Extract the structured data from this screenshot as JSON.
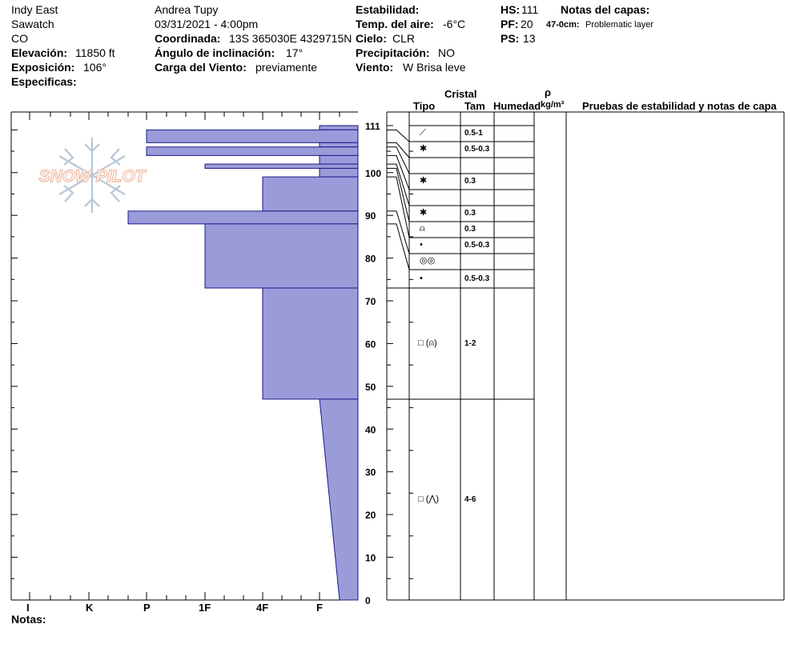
{
  "header": {
    "location": "Indy East",
    "range": "Sawatch",
    "state": "CO",
    "elevation_label": "Elevación:",
    "elevation_value": "11850 ft",
    "aspect_label": "Exposición:",
    "aspect_value": "106°",
    "specifics_label": "Especificas:",
    "observer": "Andrea Tupy",
    "datetime": "03/31/2021 - 4:00pm",
    "coord_label": "Coordinada:",
    "coord_value": "13S 365030E 4329715N",
    "slope_label": "Ángulo de inclinación:",
    "slope_value": "17°",
    "wind_load_label": "Carga del Viento:",
    "wind_load_value": "previamente",
    "stability_label": "Estabilidad:",
    "air_temp_label": "Temp. del aire:",
    "air_temp_value": "-6°C",
    "sky_label": "Cielo:",
    "sky_value": "CLR",
    "precip_label": "Precipitación:",
    "precip_value": "NO",
    "wind_label": "Viento:",
    "wind_value": "W Brisa leve",
    "hs_label": "HS:",
    "hs_value": "111",
    "pf_label": "PF:",
    "pf_value": "20",
    "ps_label": "PS:",
    "ps_value": "13",
    "layer_notes_label": "Notas del capas:",
    "layer_note_range": "47-0cm:",
    "layer_note_text": "Problematic layer"
  },
  "logo_text": "SNOW PILOT",
  "columns": {
    "crystal": "Cristal",
    "type": "Tipo",
    "size": "Tam",
    "moisture": "Humedad",
    "rho": "ρ",
    "density_unit": "kg/m³",
    "tests": "Pruebas de estabilidad y notas de capa"
  },
  "notes_label": "Notas:",
  "colors": {
    "fill": "#9b9bd9",
    "stroke": "#1a1a8c"
  },
  "chart_data": {
    "type": "snow_profile",
    "y_axis": {
      "range": [
        0,
        111
      ],
      "ticks": [
        0,
        10,
        20,
        30,
        40,
        50,
        60,
        70,
        80,
        90,
        100,
        111
      ]
    },
    "hardness_scale": [
      "I",
      "K",
      "P",
      "1F",
      "4F",
      "F"
    ],
    "hardness_profile": [
      {
        "top": 111,
        "bottom": 110,
        "hardness": "F"
      },
      {
        "top": 110,
        "bottom": 107,
        "hardness": "P"
      },
      {
        "top": 107,
        "bottom": 106,
        "hardness": "F"
      },
      {
        "top": 106,
        "bottom": 104,
        "hardness": "P"
      },
      {
        "top": 104,
        "bottom": 102,
        "hardness": "F"
      },
      {
        "top": 102,
        "bottom": 101,
        "hardness": "1F"
      },
      {
        "top": 101,
        "bottom": 99,
        "hardness": "F"
      },
      {
        "top": 99,
        "bottom": 91,
        "hardness": "4F"
      },
      {
        "top": 91,
        "bottom": 88,
        "hardness": "P-"
      },
      {
        "top": 88,
        "bottom": 73,
        "hardness": "1F"
      },
      {
        "top": 73,
        "bottom": 47,
        "hardness": "4F"
      },
      {
        "top": 47,
        "bottom": 0,
        "hardness": "F-",
        "taper": true
      }
    ],
    "layers": [
      {
        "crystal": "⟋",
        "size": "0.5-1"
      },
      {
        "crystal": "✱",
        "size": "0.5-0.3"
      },
      {
        "crystal": "",
        "size": ""
      },
      {
        "crystal": "✱",
        "size": "0.3"
      },
      {
        "crystal": "",
        "size": ""
      },
      {
        "crystal": "✱",
        "size": "0.3"
      },
      {
        "crystal": "⍝",
        "size": "0.3"
      },
      {
        "crystal": "•",
        "size": "0.5-0.3"
      },
      {
        "crystal": "◎◎",
        "size": ""
      },
      {
        "crystal": "•",
        "size": "0.5-0.3"
      },
      {
        "crystal": "□ (⍝)",
        "size": "1-2"
      },
      {
        "crystal": "□ (⋀)",
        "size": "4-6"
      }
    ]
  }
}
